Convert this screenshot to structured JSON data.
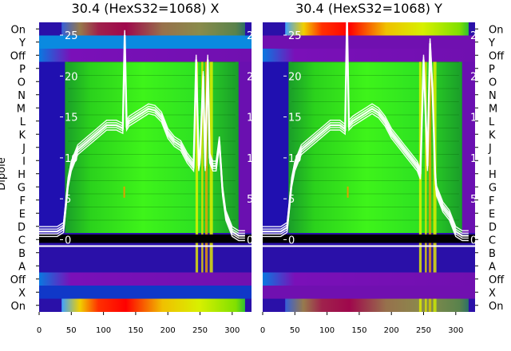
{
  "chart_data": [
    {
      "type": "heatmap",
      "title": "30.4 (HexS32=1068) X",
      "ylabel": "Dipole",
      "x_ticks": [
        "0",
        "50",
        "100",
        "150",
        "200",
        "250",
        "300"
      ],
      "xlim": [
        0,
        330
      ],
      "y_ticks_left": [
        "On",
        "Y",
        "Off",
        "P",
        "O",
        "N",
        "M",
        "L",
        "K",
        "J",
        "I",
        "H",
        "G",
        "F",
        "E",
        "D",
        "C",
        "B",
        "A",
        "Off",
        "X",
        "On"
      ],
      "inner_axis_ticks": [
        "25",
        "20",
        "15",
        "10",
        "5",
        "0"
      ],
      "inner_ylim": [
        -2,
        27
      ],
      "overlay_line": {
        "x": [
          0,
          28,
          38,
          40,
          45,
          50,
          60,
          75,
          90,
          105,
          120,
          130,
          133,
          136,
          140,
          150,
          160,
          170,
          180,
          190,
          200,
          210,
          220,
          230,
          240,
          244,
          248,
          250,
          255,
          258,
          262,
          265,
          270,
          275,
          280,
          285,
          290,
          300,
          310,
          315,
          320
        ],
        "y": [
          1,
          1,
          1.5,
          3,
          7,
          9,
          11,
          12,
          13,
          14,
          14,
          13.6,
          25,
          14,
          14.5,
          15,
          15.5,
          16,
          15.8,
          15,
          13,
          12,
          11.5,
          10,
          9,
          22,
          9,
          10,
          20,
          9,
          22,
          10,
          9,
          9,
          12,
          6,
          3,
          1,
          0.5,
          0.5,
          0.5
        ]
      },
      "color_scale": [
        "#30009a",
        "#1a0cc0",
        "#0c50e0",
        "#08a0e8",
        "#00d000",
        "#30f000",
        "#c0f000",
        "#f0f000",
        "#f08000",
        "#f00000"
      ]
    },
    {
      "type": "heatmap",
      "title": "30.4 (HexS32=1068) Y",
      "x_ticks": [
        "0",
        "50",
        "100",
        "150",
        "200",
        "250",
        "300"
      ],
      "xlim": [
        0,
        330
      ],
      "y_ticks_right": [
        "On",
        "Y",
        "Off",
        "P",
        "O",
        "N",
        "M",
        "L",
        "K",
        "J",
        "I",
        "H",
        "G",
        "F",
        "E",
        "D",
        "C",
        "B",
        "A",
        "Off",
        "X",
        "On"
      ],
      "inner_axis_ticks": [
        "25",
        "20",
        "15",
        "10",
        "5",
        "0"
      ],
      "inner_ylim": [
        -2,
        27
      ],
      "overlay_line": {
        "x": [
          0,
          28,
          38,
          40,
          45,
          50,
          60,
          75,
          90,
          105,
          120,
          128,
          131,
          134,
          140,
          150,
          160,
          170,
          180,
          190,
          200,
          210,
          220,
          230,
          240,
          245,
          250,
          252,
          256,
          260,
          264,
          268,
          270,
          275,
          280,
          290,
          300,
          310,
          320
        ],
        "y": [
          1,
          1,
          1.5,
          3,
          7,
          9,
          11,
          12,
          13,
          14,
          14,
          13.5,
          27,
          14,
          14.5,
          15,
          15.5,
          16,
          15.5,
          14.5,
          13,
          12,
          11,
          10,
          9,
          8,
          22,
          18,
          9,
          24,
          18,
          8,
          6,
          5,
          4,
          3,
          1,
          0.5,
          0.5
        ]
      },
      "color_scale": [
        "#30009a",
        "#1a0cc0",
        "#0c50e0",
        "#08a0e8",
        "#00d000",
        "#30f000",
        "#c0f000",
        "#f0f000",
        "#f08000",
        "#f00000"
      ]
    }
  ]
}
